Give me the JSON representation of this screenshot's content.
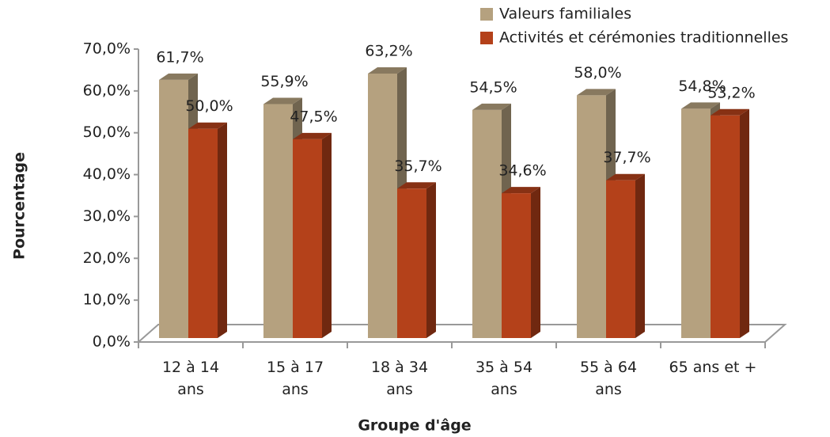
{
  "chart_data": {
    "type": "bar3d",
    "categories": [
      "12 à 14\nans",
      "15 à 17\nans",
      "18 à 34\nans",
      "35 à 54\nans",
      "55 à 64\nans",
      "65 ans et +"
    ],
    "series": [
      {
        "name": "Valeurs familiales",
        "color": "#b5a17f",
        "values": [
          61.7,
          55.9,
          63.2,
          54.5,
          58.0,
          54.8
        ],
        "value_labels": [
          "61,7%",
          "55,9%",
          "63,2%",
          "54,5%",
          "58,0%",
          "54,8%"
        ]
      },
      {
        "name": "Activités et cérémonies traditionnelles",
        "color": "#b4411a",
        "values": [
          50.0,
          47.5,
          35.7,
          34.6,
          37.7,
          53.2
        ],
        "value_labels": [
          "50,0%",
          "47,5%",
          "35,7%",
          "34,6%",
          "37,7%",
          "53,2%"
        ]
      }
    ],
    "ylim": [
      0,
      70
    ],
    "yticks": [
      {
        "value": 0,
        "label": "0,0%"
      },
      {
        "value": 10,
        "label": "10,0%"
      },
      {
        "value": 20,
        "label": "20,0%"
      },
      {
        "value": 30,
        "label": "30,0%"
      },
      {
        "value": 40,
        "label": "40,0%"
      },
      {
        "value": 50,
        "label": "50,0%"
      },
      {
        "value": 60,
        "label": "60,0%"
      },
      {
        "value": 70,
        "label": "70,0%"
      }
    ],
    "ylabel": "Pourcentage",
    "xlabel": "Groupe d'âge",
    "legend": "top-right"
  }
}
